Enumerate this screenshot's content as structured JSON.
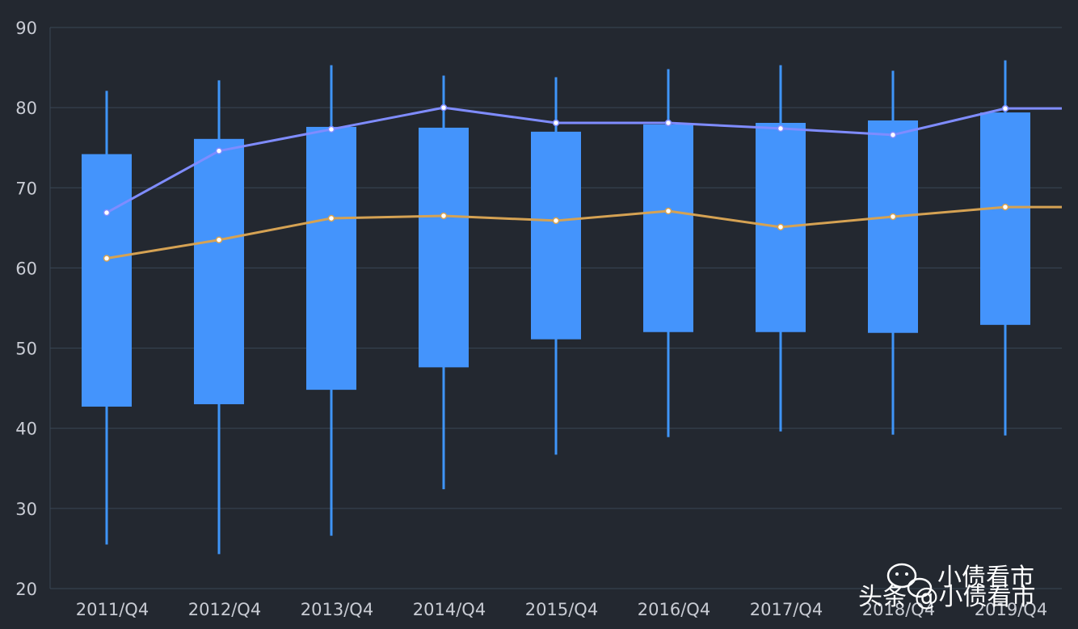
{
  "chart_data": {
    "type": "boxplot",
    "categories": [
      "2011/Q4",
      "2012/Q4",
      "2013/Q4",
      "2014/Q4",
      "2015/Q4",
      "2016/Q4",
      "2017/Q4",
      "2018/Q4",
      "2019/Q4"
    ],
    "ylim": [
      20,
      90
    ],
    "yticks": [
      20,
      30,
      40,
      50,
      60,
      70,
      80,
      90
    ],
    "grid": true,
    "boxes": [
      {
        "min": 25.5,
        "q1": 42.7,
        "q3": 74.2,
        "max": 82.1
      },
      {
        "min": 24.3,
        "q1": 43.0,
        "q3": 76.1,
        "max": 83.4
      },
      {
        "min": 26.6,
        "q1": 44.8,
        "q3": 77.6,
        "max": 85.3
      },
      {
        "min": 32.4,
        "q1": 47.6,
        "q3": 77.5,
        "max": 84.0
      },
      {
        "min": 36.7,
        "q1": 51.1,
        "q3": 77.0,
        "max": 83.8
      },
      {
        "min": 38.9,
        "q1": 52.0,
        "q3": 77.9,
        "max": 84.8
      },
      {
        "min": 39.6,
        "q1": 52.0,
        "q3": 78.1,
        "max": 85.3
      },
      {
        "min": 39.2,
        "q1": 51.9,
        "q3": 78.4,
        "max": 84.6
      },
      {
        "min": 39.1,
        "q1": 52.9,
        "q3": 79.4,
        "max": 85.9
      }
    ],
    "series": [
      {
        "values": [
          66.9,
          74.6,
          77.3,
          80.0,
          78.1,
          78.1,
          77.4,
          76.6,
          79.9
        ],
        "color": "#7f8cff"
      },
      {
        "values": [
          61.2,
          63.5,
          66.2,
          66.5,
          65.9,
          67.1,
          65.1,
          66.4,
          67.6
        ],
        "color": "#d5a253"
      }
    ],
    "box_color": "#4494fc",
    "whisker_color": "#3f95f8"
  },
  "watermark": {
    "line1": "小债看市",
    "line2": "头条 @小债看市"
  }
}
